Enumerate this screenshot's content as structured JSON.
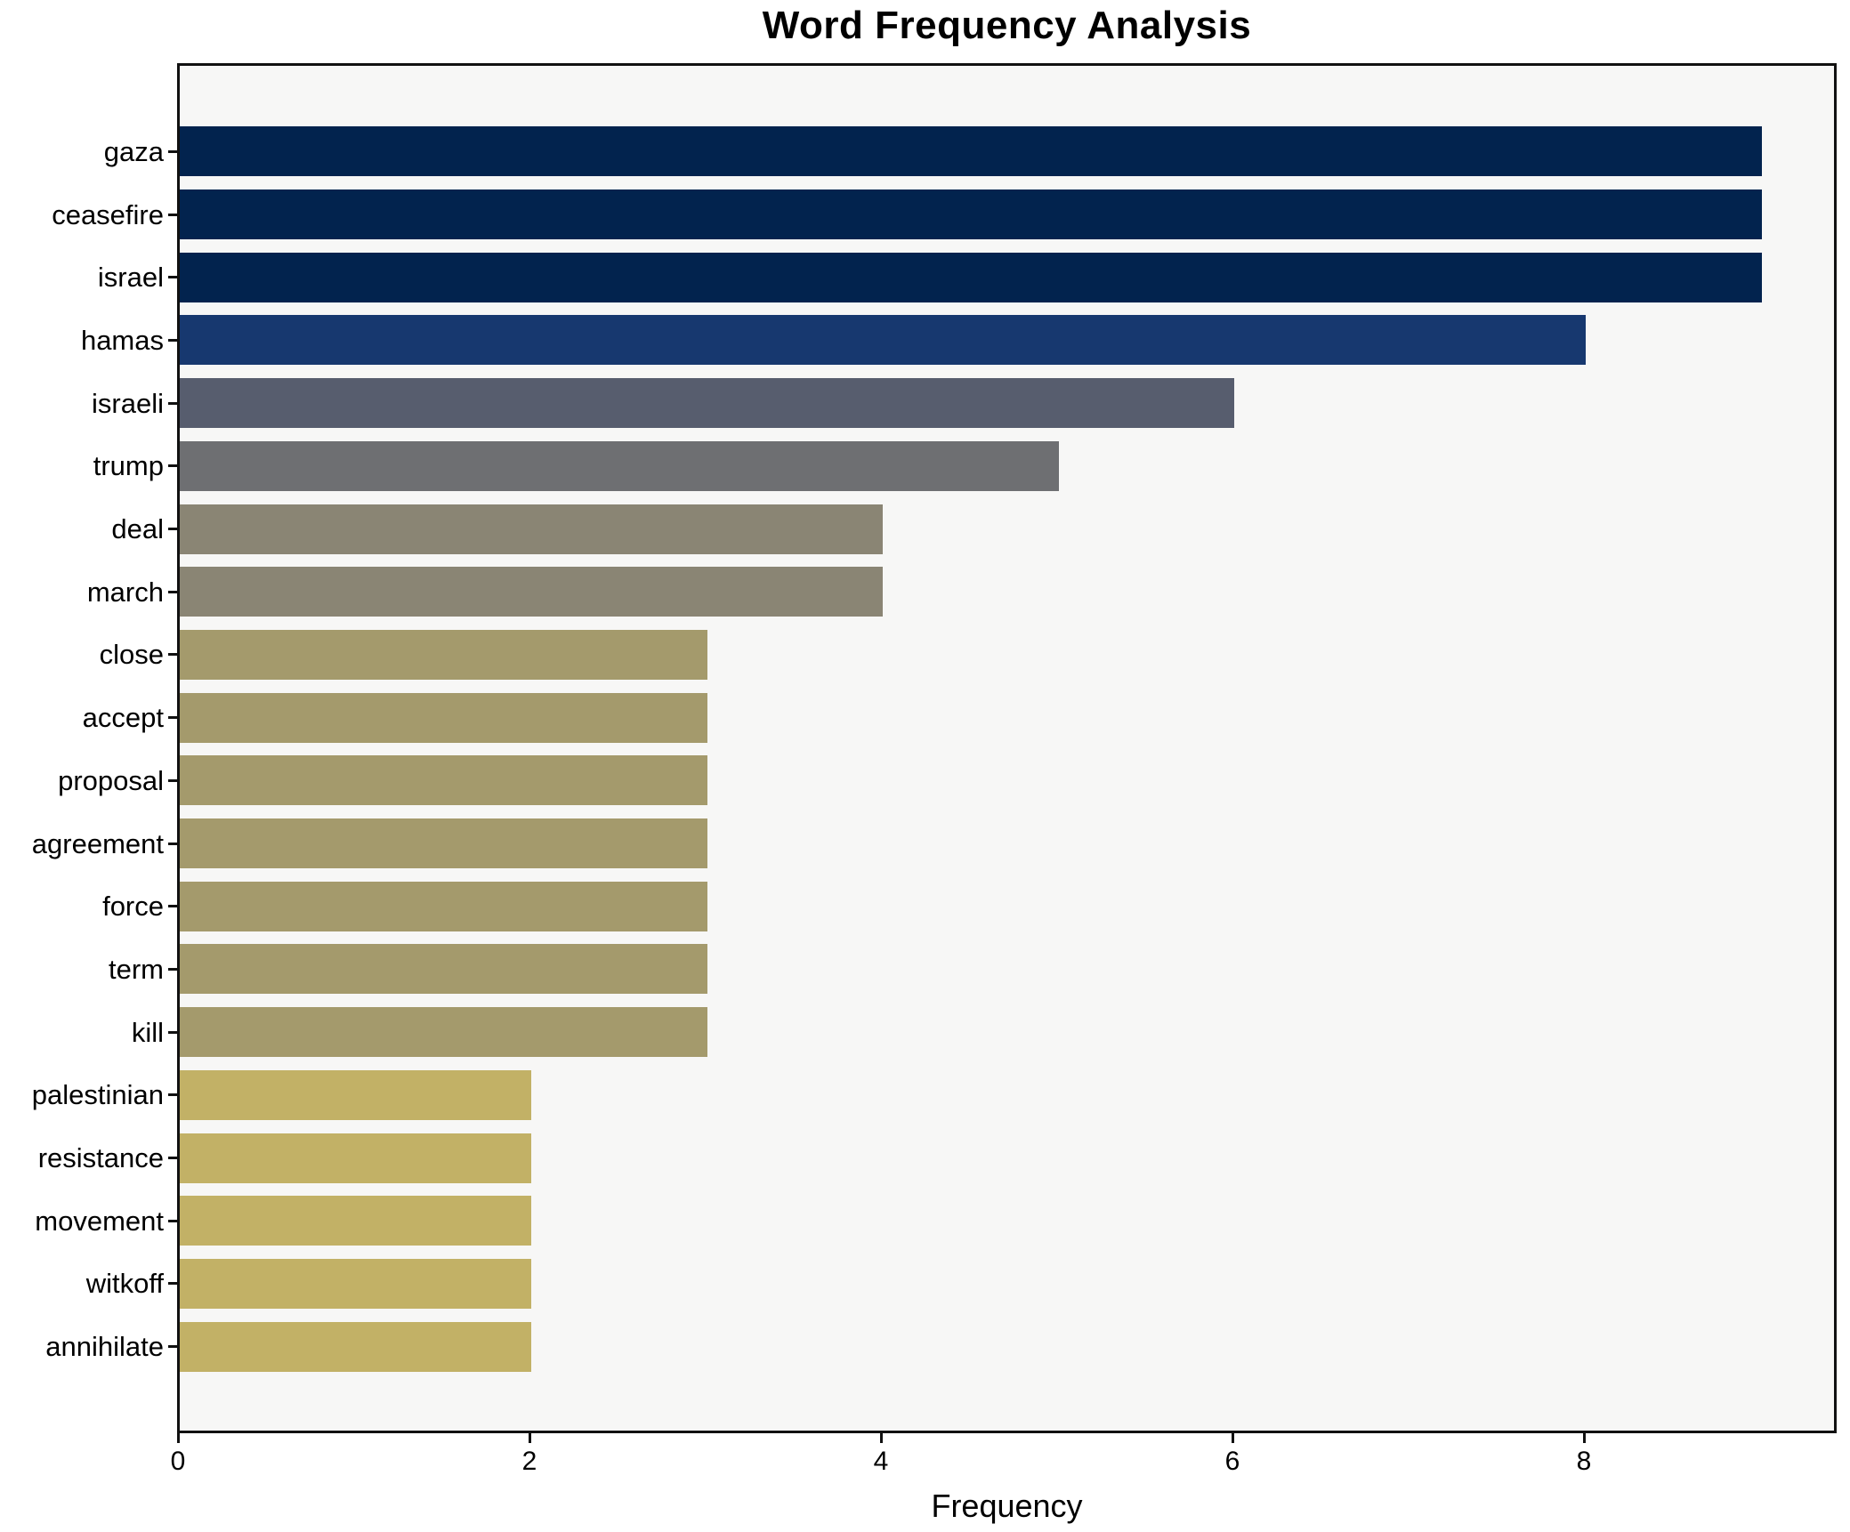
{
  "chart_data": {
    "type": "bar",
    "orientation": "horizontal",
    "title": "Word Frequency Analysis",
    "xlabel": "Frequency",
    "ylabel": "",
    "categories": [
      "gaza",
      "ceasefire",
      "israel",
      "hamas",
      "israeli",
      "trump",
      "deal",
      "march",
      "close",
      "accept",
      "proposal",
      "agreement",
      "force",
      "term",
      "kill",
      "palestinian",
      "resistance",
      "movement",
      "witkoff",
      "annihilate"
    ],
    "values": [
      9,
      9,
      9,
      8,
      6,
      5,
      4,
      4,
      3,
      3,
      3,
      3,
      3,
      3,
      3,
      2,
      2,
      2,
      2,
      2
    ],
    "bar_colors": [
      "#02234e",
      "#02234e",
      "#02234e",
      "#17386f",
      "#575d6e",
      "#6e6f72",
      "#8a8574",
      "#8a8574",
      "#a49a6c",
      "#a49a6c",
      "#a49a6c",
      "#a49a6c",
      "#a49a6c",
      "#a49a6c",
      "#a49a6c",
      "#c2b166",
      "#c2b166",
      "#c2b166",
      "#c2b166",
      "#c2b166"
    ],
    "xticks": [
      "0",
      "2",
      "4",
      "6",
      "8"
    ],
    "xtick_values": [
      0,
      2,
      4,
      6,
      8
    ],
    "xlim": [
      0,
      9.43
    ],
    "grid": false,
    "legend_position": "none",
    "plot_bg_color": "#f7f7f6",
    "figure_bg_color": "#ffffff",
    "spine_color": "#111111",
    "text_color": "#000000"
  }
}
